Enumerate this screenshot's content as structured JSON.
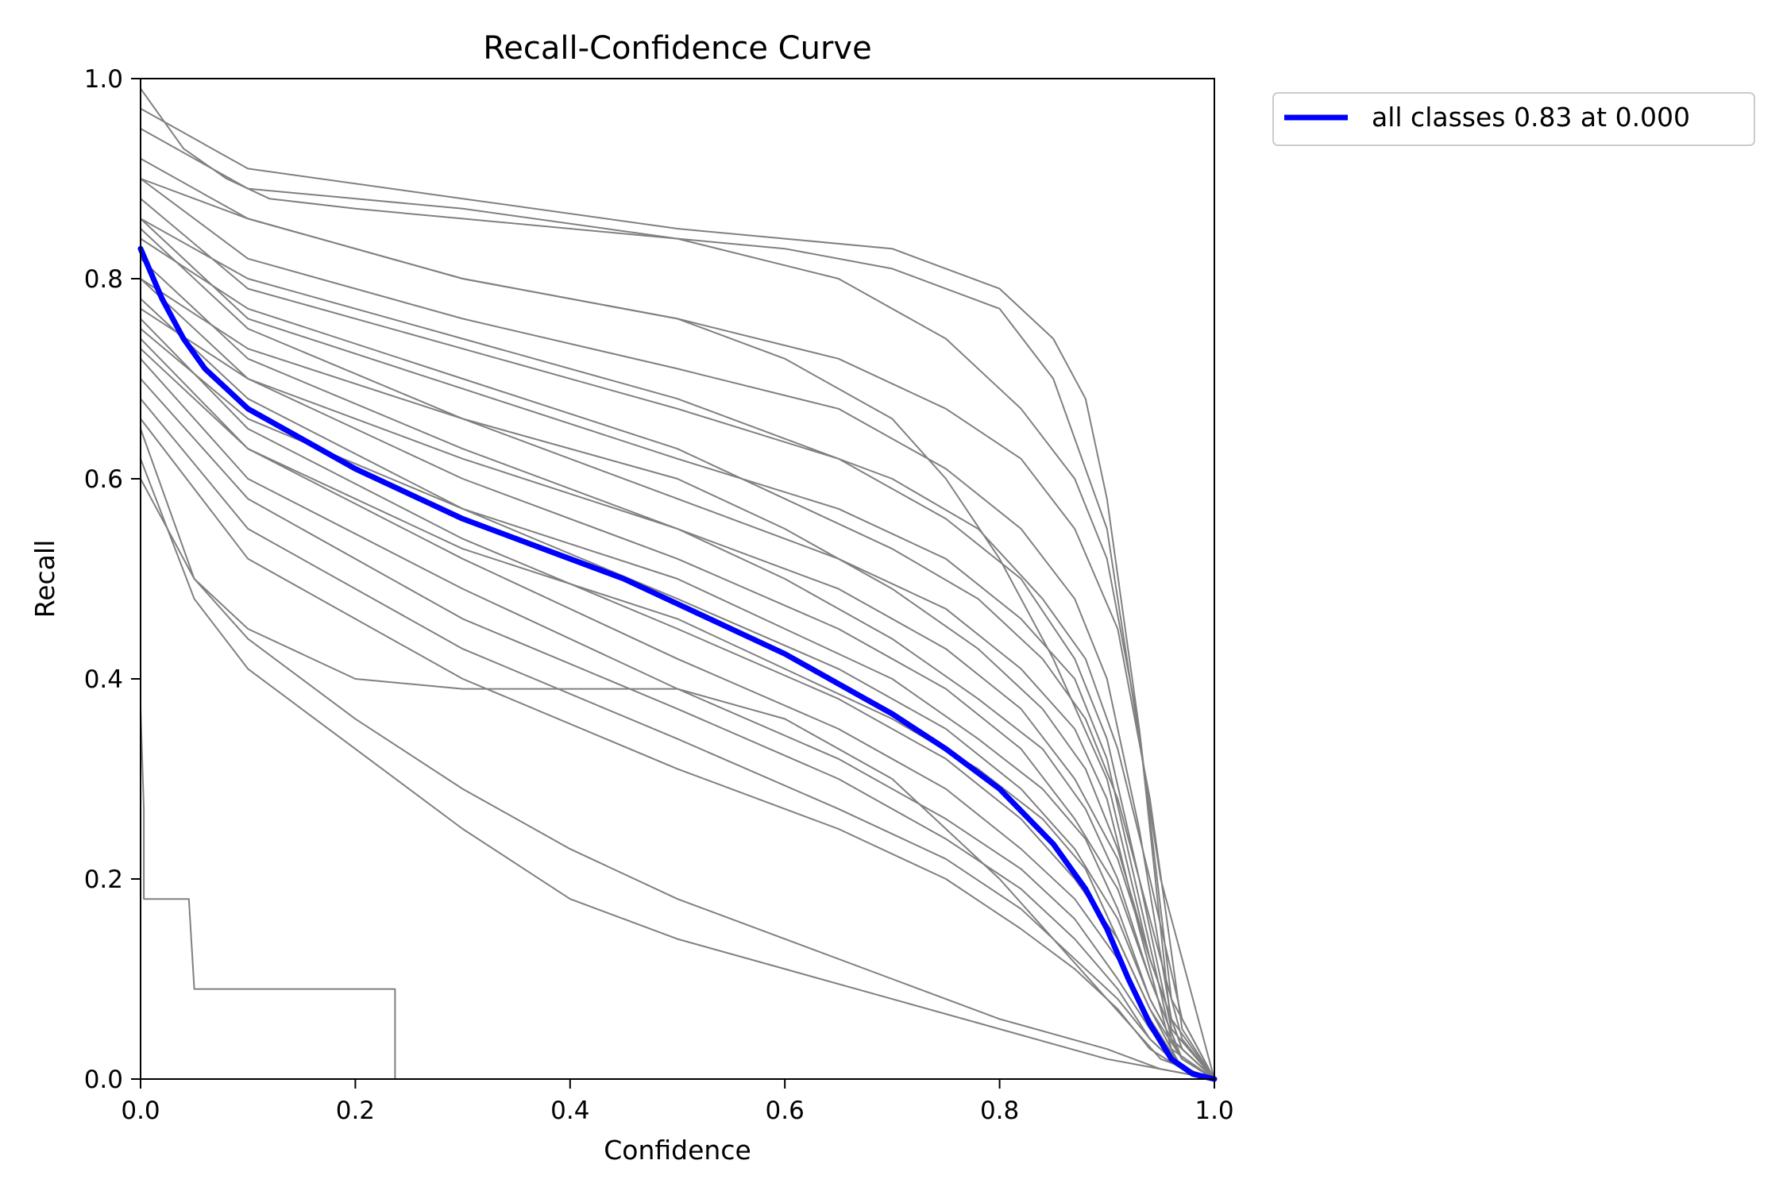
{
  "chart_data": {
    "type": "line",
    "title": "Recall-Confidence Curve",
    "xlabel": "Confidence",
    "ylabel": "Recall",
    "xlim": [
      0,
      1
    ],
    "ylim": [
      0,
      1
    ],
    "xticks": [
      "0.0",
      "0.2",
      "0.4",
      "0.6",
      "0.8",
      "1.0"
    ],
    "yticks": [
      "0.0",
      "0.2",
      "0.4",
      "0.6",
      "0.8",
      "1.0"
    ],
    "grid": false,
    "legend": {
      "placement": "outside-top-right",
      "entries": [
        "all classes 0.83 at 0.000"
      ]
    },
    "colors": {
      "class_curves": "#808080",
      "aggregate": "#0000ff"
    },
    "series": [
      {
        "name": "all classes 0.83 at 0.000",
        "x": [
          0.0,
          0.02,
          0.04,
          0.06,
          0.08,
          0.1,
          0.15,
          0.2,
          0.25,
          0.3,
          0.35,
          0.4,
          0.45,
          0.5,
          0.55,
          0.6,
          0.65,
          0.7,
          0.75,
          0.8,
          0.85,
          0.88,
          0.9,
          0.92,
          0.94,
          0.96,
          0.98,
          1.0
        ],
        "y": [
          0.83,
          0.78,
          0.74,
          0.71,
          0.69,
          0.67,
          0.64,
          0.61,
          0.585,
          0.56,
          0.54,
          0.52,
          0.5,
          0.475,
          0.45,
          0.425,
          0.395,
          0.365,
          0.33,
          0.29,
          0.235,
          0.19,
          0.15,
          0.1,
          0.055,
          0.02,
          0.005,
          0.0
        ]
      }
    ],
    "class_curves": [
      {
        "x": [
          0.0,
          0.1,
          0.3,
          0.5,
          0.6,
          0.7,
          0.75,
          0.8,
          0.85,
          0.88,
          0.9,
          0.93,
          0.96,
          1.0
        ],
        "y": [
          0.97,
          0.91,
          0.88,
          0.85,
          0.84,
          0.83,
          0.81,
          0.79,
          0.74,
          0.68,
          0.58,
          0.35,
          0.05,
          0.0
        ]
      },
      {
        "x": [
          0.0,
          0.1,
          0.3,
          0.5,
          0.65,
          0.75,
          0.82,
          0.87,
          0.9,
          0.93,
          0.96,
          1.0
        ],
        "y": [
          0.95,
          0.89,
          0.87,
          0.84,
          0.8,
          0.74,
          0.67,
          0.6,
          0.52,
          0.35,
          0.08,
          0.0
        ]
      },
      {
        "x": [
          0.0,
          0.1,
          0.3,
          0.5,
          0.65,
          0.75,
          0.82,
          0.87,
          0.91,
          0.94,
          0.97,
          1.0
        ],
        "y": [
          0.92,
          0.86,
          0.8,
          0.76,
          0.72,
          0.67,
          0.62,
          0.55,
          0.45,
          0.28,
          0.05,
          0.0
        ]
      },
      {
        "x": [
          0.0,
          0.1,
          0.3,
          0.5,
          0.65,
          0.75,
          0.82,
          0.87,
          0.9,
          0.93,
          0.96,
          1.0
        ],
        "y": [
          0.9,
          0.82,
          0.76,
          0.71,
          0.67,
          0.61,
          0.55,
          0.48,
          0.4,
          0.25,
          0.06,
          0.0
        ]
      },
      {
        "x": [
          0.0,
          0.1,
          0.3,
          0.5,
          0.65,
          0.75,
          0.82,
          0.87,
          0.9,
          0.93,
          0.96,
          1.0
        ],
        "y": [
          0.88,
          0.79,
          0.73,
          0.67,
          0.62,
          0.56,
          0.5,
          0.42,
          0.34,
          0.2,
          0.05,
          0.0
        ]
      },
      {
        "x": [
          0.0,
          0.1,
          0.3,
          0.5,
          0.65,
          0.75,
          0.82,
          0.87,
          0.9,
          0.93,
          0.96,
          1.0
        ],
        "y": [
          0.86,
          0.76,
          0.69,
          0.62,
          0.57,
          0.52,
          0.46,
          0.4,
          0.32,
          0.18,
          0.04,
          0.0
        ]
      },
      {
        "x": [
          0.0,
          0.1,
          0.3,
          0.5,
          0.65,
          0.75,
          0.82,
          0.87,
          0.9,
          0.93,
          0.96,
          1.0
        ],
        "y": [
          0.85,
          0.75,
          0.66,
          0.58,
          0.52,
          0.47,
          0.41,
          0.35,
          0.28,
          0.15,
          0.03,
          0.0
        ]
      },
      {
        "x": [
          0.0,
          0.1,
          0.3,
          0.5,
          0.65,
          0.75,
          0.82,
          0.87,
          0.91,
          0.94,
          0.97,
          1.0
        ],
        "y": [
          0.82,
          0.72,
          0.63,
          0.55,
          0.49,
          0.43,
          0.37,
          0.3,
          0.22,
          0.12,
          0.03,
          0.0
        ]
      },
      {
        "x": [
          0.0,
          0.1,
          0.3,
          0.5,
          0.65,
          0.75,
          0.82,
          0.87,
          0.91,
          0.94,
          0.97,
          1.0
        ],
        "y": [
          0.8,
          0.7,
          0.6,
          0.52,
          0.45,
          0.39,
          0.33,
          0.26,
          0.19,
          0.1,
          0.02,
          0.0
        ]
      },
      {
        "x": [
          0.0,
          0.1,
          0.3,
          0.5,
          0.65,
          0.75,
          0.82,
          0.87,
          0.91,
          0.94,
          0.97,
          1.0
        ],
        "y": [
          0.78,
          0.68,
          0.57,
          0.48,
          0.41,
          0.35,
          0.29,
          0.23,
          0.16,
          0.08,
          0.02,
          0.0
        ]
      },
      {
        "x": [
          0.0,
          0.1,
          0.3,
          0.5,
          0.65,
          0.75,
          0.82,
          0.87,
          0.91,
          0.94,
          0.97,
          1.0
        ],
        "y": [
          0.76,
          0.65,
          0.54,
          0.45,
          0.38,
          0.32,
          0.26,
          0.2,
          0.14,
          0.07,
          0.02,
          0.0
        ]
      },
      {
        "x": [
          0.0,
          0.1,
          0.3,
          0.5,
          0.65,
          0.75,
          0.82,
          0.87,
          0.91,
          0.94,
          0.97,
          1.0
        ],
        "y": [
          0.74,
          0.63,
          0.52,
          0.42,
          0.35,
          0.29,
          0.23,
          0.18,
          0.12,
          0.06,
          0.01,
          0.0
        ]
      },
      {
        "x": [
          0.0,
          0.1,
          0.3,
          0.5,
          0.65,
          0.75,
          0.82,
          0.87,
          0.91,
          0.94,
          0.97,
          1.0
        ],
        "y": [
          0.72,
          0.6,
          0.49,
          0.39,
          0.32,
          0.26,
          0.21,
          0.16,
          0.1,
          0.05,
          0.01,
          0.0
        ]
      },
      {
        "x": [
          0.0,
          0.1,
          0.3,
          0.5,
          0.65,
          0.75,
          0.82,
          0.87,
          0.91,
          0.94,
          0.97,
          1.0
        ],
        "y": [
          0.7,
          0.58,
          0.46,
          0.37,
          0.3,
          0.24,
          0.19,
          0.14,
          0.09,
          0.04,
          0.01,
          0.0
        ]
      },
      {
        "x": [
          0.0,
          0.1,
          0.3,
          0.5,
          0.65,
          0.75,
          0.82,
          0.87,
          0.91,
          0.94,
          0.97,
          1.0
        ],
        "y": [
          0.68,
          0.55,
          0.43,
          0.34,
          0.27,
          0.22,
          0.17,
          0.12,
          0.08,
          0.04,
          0.01,
          0.0
        ]
      },
      {
        "x": [
          0.0,
          0.1,
          0.3,
          0.5,
          0.65,
          0.75,
          0.82,
          0.87,
          0.91,
          0.94,
          0.97,
          1.0
        ],
        "y": [
          0.66,
          0.52,
          0.4,
          0.31,
          0.25,
          0.2,
          0.15,
          0.11,
          0.07,
          0.03,
          0.01,
          0.0
        ]
      },
      {
        "x": [
          0.0,
          0.05,
          0.1,
          0.2,
          0.3,
          0.4,
          0.5,
          0.6,
          0.7,
          0.8,
          0.9,
          0.95,
          1.0
        ],
        "y": [
          0.65,
          0.5,
          0.44,
          0.36,
          0.29,
          0.23,
          0.18,
          0.14,
          0.1,
          0.06,
          0.03,
          0.01,
          0.0
        ]
      },
      {
        "x": [
          0.0,
          0.05,
          0.1,
          0.2,
          0.3,
          0.4,
          0.5,
          0.6,
          0.7,
          0.8,
          0.9,
          0.95,
          1.0
        ],
        "y": [
          0.62,
          0.48,
          0.41,
          0.33,
          0.25,
          0.18,
          0.14,
          0.11,
          0.08,
          0.05,
          0.02,
          0.01,
          0.0
        ]
      },
      {
        "x": [
          0.0,
          0.1,
          0.3,
          0.5,
          0.6,
          0.7,
          0.75,
          0.8,
          0.85,
          0.9,
          0.94,
          0.97,
          1.0
        ],
        "y": [
          0.9,
          0.86,
          0.8,
          0.76,
          0.72,
          0.66,
          0.6,
          0.52,
          0.42,
          0.3,
          0.12,
          0.03,
          0.0
        ]
      },
      {
        "x": [
          0.0,
          0.1,
          0.3,
          0.5,
          0.6,
          0.7,
          0.78,
          0.84,
          0.88,
          0.91,
          0.94,
          0.97,
          1.0
        ],
        "y": [
          0.86,
          0.8,
          0.74,
          0.68,
          0.64,
          0.6,
          0.55,
          0.48,
          0.42,
          0.33,
          0.2,
          0.06,
          0.0
        ]
      },
      {
        "x": [
          0.0,
          0.1,
          0.3,
          0.5,
          0.6,
          0.7,
          0.78,
          0.84,
          0.88,
          0.91,
          0.94,
          0.97,
          1.0
        ],
        "y": [
          0.84,
          0.77,
          0.7,
          0.63,
          0.58,
          0.53,
          0.48,
          0.42,
          0.36,
          0.28,
          0.16,
          0.04,
          0.0
        ]
      },
      {
        "x": [
          0.0,
          0.1,
          0.3,
          0.5,
          0.6,
          0.7,
          0.78,
          0.84,
          0.88,
          0.91,
          0.94,
          0.97,
          1.0
        ],
        "y": [
          0.8,
          0.73,
          0.66,
          0.6,
          0.55,
          0.49,
          0.43,
          0.37,
          0.31,
          0.23,
          0.12,
          0.03,
          0.0
        ]
      },
      {
        "x": [
          0.0,
          0.1,
          0.3,
          0.5,
          0.6,
          0.7,
          0.78,
          0.84,
          0.88,
          0.91,
          0.94,
          0.97,
          1.0
        ],
        "y": [
          0.77,
          0.7,
          0.62,
          0.55,
          0.5,
          0.44,
          0.38,
          0.33,
          0.27,
          0.2,
          0.1,
          0.02,
          0.0
        ]
      },
      {
        "x": [
          0.0,
          0.1,
          0.3,
          0.5,
          0.6,
          0.7,
          0.78,
          0.84,
          0.88,
          0.91,
          0.94,
          0.97,
          1.0
        ],
        "y": [
          0.75,
          0.66,
          0.57,
          0.5,
          0.45,
          0.4,
          0.34,
          0.29,
          0.24,
          0.17,
          0.08,
          0.02,
          0.0
        ]
      },
      {
        "x": [
          0.0,
          0.1,
          0.3,
          0.5,
          0.6,
          0.7,
          0.78,
          0.84,
          0.88,
          0.91,
          0.94,
          0.97,
          1.0
        ],
        "y": [
          0.73,
          0.63,
          0.53,
          0.46,
          0.41,
          0.36,
          0.31,
          0.26,
          0.21,
          0.14,
          0.07,
          0.01,
          0.0
        ]
      },
      {
        "x": [
          0.0,
          0.05,
          0.1,
          0.2,
          0.3,
          0.5,
          0.6,
          0.7,
          0.8,
          0.9,
          0.95,
          1.0
        ],
        "y": [
          0.6,
          0.5,
          0.45,
          0.4,
          0.39,
          0.39,
          0.36,
          0.3,
          0.2,
          0.08,
          0.02,
          0.0
        ]
      },
      {
        "x": [
          0.0,
          0.04,
          0.08,
          0.12,
          0.2,
          0.3,
          0.4,
          0.5,
          0.6,
          0.7,
          0.8,
          0.85,
          0.9,
          0.95,
          1.0
        ],
        "y": [
          0.99,
          0.93,
          0.9,
          0.88,
          0.87,
          0.86,
          0.85,
          0.84,
          0.83,
          0.81,
          0.77,
          0.7,
          0.55,
          0.2,
          0.0
        ]
      },
      {
        "x": [
          0.0,
          0.003,
          0.003,
          0.045,
          0.05,
          0.237,
          0.237,
          1.0
        ],
        "y": [
          0.37,
          0.27,
          0.18,
          0.18,
          0.09,
          0.09,
          0.0,
          0.0
        ]
      }
    ]
  }
}
